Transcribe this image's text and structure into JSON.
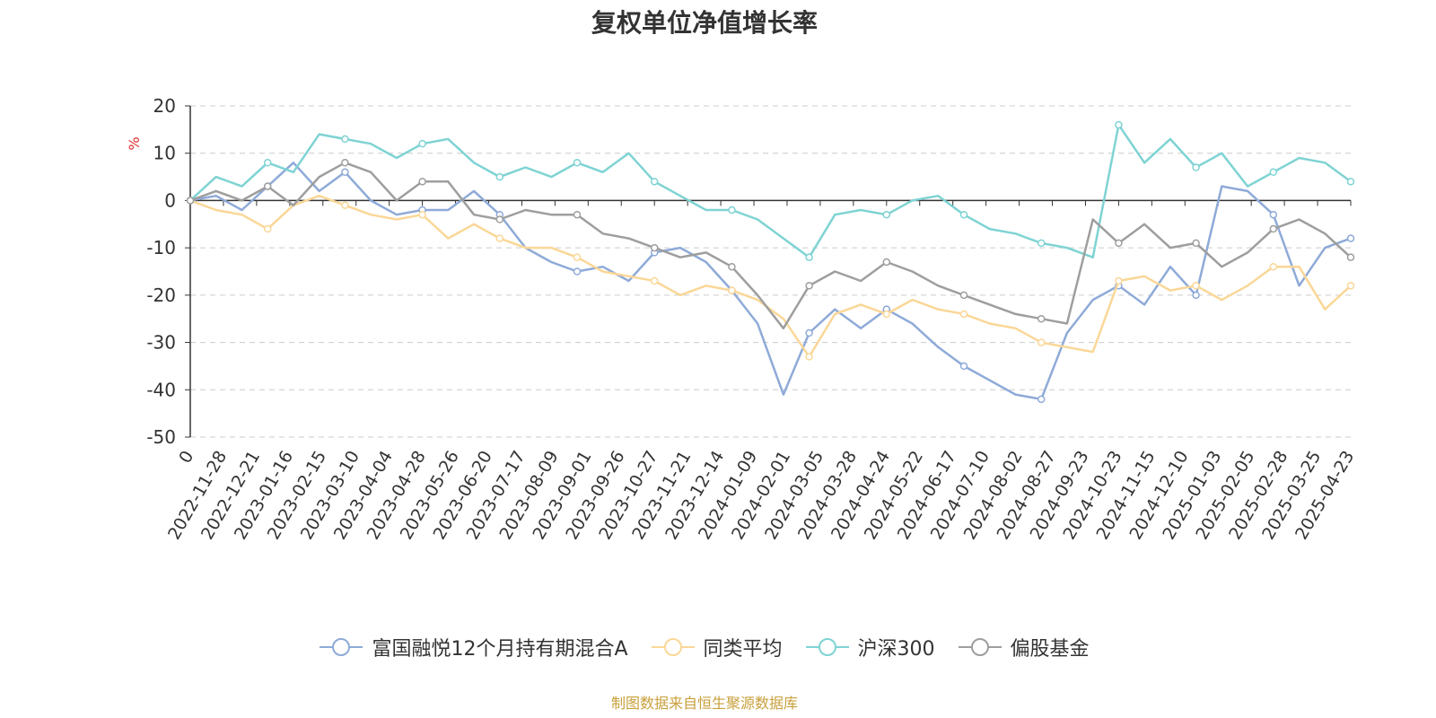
{
  "chart_data": {
    "type": "line",
    "title": "复权单位净值增长率",
    "ylabel": "%",
    "xlabel": "",
    "ylim": [
      -50,
      20
    ],
    "yticks": [
      "20",
      "10",
      "0",
      "-10",
      "-20",
      "-30",
      "-40",
      "-50"
    ],
    "grid": true,
    "legend_position": "bottom",
    "x_tick_labels": [
      "0",
      "2022-11-28",
      "2022-12-21",
      "2023-01-16",
      "2023-02-15",
      "2023-03-10",
      "2023-04-04",
      "2023-04-28",
      "2023-05-26",
      "2023-06-20",
      "2023-07-17",
      "2023-08-09",
      "2023-09-01",
      "2023-09-26",
      "2023-10-27",
      "2023-11-21",
      "2023-12-14",
      "2024-01-09",
      "2024-02-01",
      "2024-03-05",
      "2024-03-28",
      "2024-04-24",
      "2024-05-22",
      "2024-06-17",
      "2024-07-10",
      "2024-08-02",
      "2024-08-27",
      "2024-09-23",
      "2024-10-23",
      "2024-11-15",
      "2024-12-10",
      "2025-01-03",
      "2025-02-05",
      "2025-02-28",
      "2025-03-25",
      "2025-04-23"
    ],
    "series": [
      {
        "name": "富国融悦12个月持有期混合A",
        "color": "#8eaad8",
        "values": [
          0,
          1,
          -2,
          3,
          8,
          2,
          6,
          0,
          -3,
          -2,
          -2,
          2,
          -3,
          -10,
          -13,
          -15,
          -14,
          -17,
          -11,
          -10,
          -13,
          -19,
          -26,
          -41,
          -28,
          -23,
          -27,
          -23,
          -26,
          -31,
          -35,
          -38,
          -41,
          -42,
          -28,
          -21,
          -18,
          -22,
          -14,
          -20,
          3,
          2,
          -3,
          -18,
          -10,
          -8
        ]
      },
      {
        "name": "同类平均",
        "color": "#fad797",
        "values": [
          0,
          -2,
          -3,
          -6,
          -1,
          1,
          -1,
          -3,
          -4,
          -3,
          -8,
          -5,
          -8,
          -10,
          -10,
          -12,
          -15,
          -16,
          -17,
          -20,
          -18,
          -19,
          -21,
          -25,
          -33,
          -24,
          -22,
          -24,
          -21,
          -23,
          -24,
          -26,
          -27,
          -30,
          -31,
          -32,
          -17,
          -16,
          -19,
          -18,
          -21,
          -18,
          -14,
          -14,
          -23,
          -18
        ]
      },
      {
        "name": "沪深300",
        "color": "#7fd3d3",
        "values": [
          0,
          5,
          3,
          8,
          6,
          14,
          13,
          12,
          9,
          12,
          13,
          8,
          5,
          7,
          5,
          8,
          6,
          10,
          4,
          1,
          -2,
          -2,
          -4,
          -8,
          -12,
          -3,
          -2,
          -3,
          0,
          1,
          -3,
          -6,
          -7,
          -9,
          -10,
          -12,
          16,
          8,
          13,
          7,
          10,
          3,
          6,
          9,
          8,
          4
        ]
      },
      {
        "name": "偏股基金",
        "color": "#9e9e9e",
        "values": [
          0,
          2,
          0,
          3,
          -1,
          5,
          8,
          6,
          0,
          4,
          4,
          -3,
          -4,
          -2,
          -3,
          -3,
          -7,
          -8,
          -10,
          -12,
          -11,
          -14,
          -20,
          -27,
          -18,
          -15,
          -17,
          -13,
          -15,
          -18,
          -20,
          -22,
          -24,
          -25,
          -26,
          -4,
          -9,
          -5,
          -10,
          -9,
          -14,
          -11,
          -6,
          -4,
          -7,
          -12
        ]
      }
    ]
  },
  "source_note": "制图数据来自恒生聚源数据库"
}
